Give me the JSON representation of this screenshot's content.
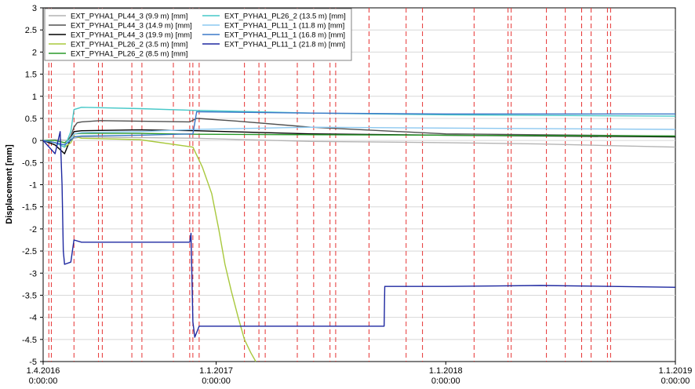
{
  "chart_data": {
    "type": "line",
    "ylabel": "Displacement [mm]",
    "xlabel": "",
    "ylim": [
      -5,
      3
    ],
    "xlim": [
      "2016-04-01",
      "2019-01-01"
    ],
    "yticks": [
      "3",
      "2.5",
      "2",
      "1.5",
      "1",
      "0.5",
      "0",
      "-0.5",
      "-1",
      "-1.5",
      "-2",
      "-2.5",
      "-3",
      "-3.5",
      "-4",
      "-4.5",
      "-5"
    ],
    "xticks": [
      {
        "date": "2016-04-01",
        "line1": "1.4.2016",
        "line2": "0:00:00"
      },
      {
        "date": "2017-01-01",
        "line1": "1.1.2017",
        "line2": "0:00:00"
      },
      {
        "date": "2018-01-01",
        "line1": "1.1.2018",
        "line2": "0:00:00"
      },
      {
        "date": "2019-01-01",
        "line1": "1.1.2019",
        "line2": "0:00:00"
      }
    ],
    "grid": "horizontal",
    "legend_position": "top-left",
    "event_lines": [
      "2016-04-10",
      "2016-04-14",
      "2016-05-20",
      "2016-06-28",
      "2016-07-04",
      "2016-08-20",
      "2016-09-05",
      "2016-10-25",
      "2016-11-20",
      "2016-11-25",
      "2016-12-05",
      "2017-02-15",
      "2017-03-10",
      "2017-03-20",
      "2017-05-10",
      "2017-06-05",
      "2017-07-01",
      "2017-07-10",
      "2017-09-01",
      "2017-10-30",
      "2017-11-25",
      "2018-02-15",
      "2018-04-10",
      "2018-04-15",
      "2018-06-10",
      "2018-07-10",
      "2018-08-05",
      "2018-08-20",
      "2018-09-15",
      "2018-09-20"
    ],
    "event_line_color": "#e63232",
    "series": [
      {
        "name": "EXT_PYHA1_PL44_3 (9.9 m) [mm]",
        "color": "#b4b4b4",
        "x": [
          "2016-04-01",
          "2016-04-20",
          "2016-05-10",
          "2016-05-20",
          "2016-06-01",
          "2016-08-01",
          "2016-12-01",
          "2017-06-01",
          "2018-01-01",
          "2018-06-01",
          "2019-01-01"
        ],
        "y": [
          0,
          0.02,
          0.0,
          0.05,
          0.08,
          0.07,
          0.05,
          -0.02,
          -0.05,
          -0.08,
          -0.15
        ]
      },
      {
        "name": "EXT_PYHA1_PL44_3 (14.9 m) [mm]",
        "color": "#505050",
        "x": [
          "2016-04-01",
          "2016-04-20",
          "2016-05-05",
          "2016-05-15",
          "2016-05-20",
          "2016-05-25",
          "2016-06-01",
          "2016-07-01",
          "2016-11-20",
          "2016-12-01",
          "2017-02-01",
          "2017-06-01",
          "2018-01-01",
          "2019-01-01"
        ],
        "y": [
          0,
          -0.05,
          -0.1,
          0.1,
          0.3,
          0.4,
          0.42,
          0.45,
          0.42,
          0.5,
          0.44,
          0.3,
          0.15,
          0.1
        ]
      },
      {
        "name": "EXT_PYHA1_PL44_3 (19.9 m) [mm]",
        "color": "#000000",
        "x": [
          "2016-04-01",
          "2016-04-20",
          "2016-05-05",
          "2016-05-15",
          "2016-05-20",
          "2016-06-01",
          "2016-09-01",
          "2016-12-01",
          "2017-06-01",
          "2018-01-01",
          "2019-01-01"
        ],
        "y": [
          0,
          -0.1,
          -0.3,
          0.05,
          0.2,
          0.22,
          0.24,
          0.22,
          0.15,
          0.12,
          0.08
        ]
      },
      {
        "name": "EXT_PYHA1_PL26_2 (3.5 m) [mm]",
        "color": "#a8c83c",
        "x": [
          "2016-04-01",
          "2016-04-20",
          "2016-05-05",
          "2016-05-15",
          "2016-05-20",
          "2016-06-01",
          "2016-09-01",
          "2016-11-25",
          "2016-12-10",
          "2016-12-25",
          "2017-01-05",
          "2017-01-15",
          "2017-01-25",
          "2017-02-05",
          "2017-02-15",
          "2017-02-25",
          "2017-03-05"
        ],
        "y": [
          0,
          -0.05,
          -0.15,
          -0.05,
          0.1,
          0.05,
          0.02,
          -0.15,
          -0.6,
          -1.2,
          -2.0,
          -2.8,
          -3.4,
          -4.0,
          -4.5,
          -4.8,
          -5.0
        ]
      },
      {
        "name": "EXT_PYHA1_PL26_2 (8.5 m) [mm]",
        "color": "#2a9a2a",
        "x": [
          "2016-04-01",
          "2016-04-20",
          "2016-05-05",
          "2016-05-15",
          "2016-05-20",
          "2016-06-01",
          "2016-09-01",
          "2016-12-01",
          "2017-06-01",
          "2018-01-01",
          "2019-01-01"
        ],
        "y": [
          0,
          0.0,
          -0.05,
          0.05,
          0.15,
          0.16,
          0.16,
          0.14,
          0.13,
          0.12,
          0.1
        ]
      },
      {
        "name": "EXT_PYHA1_PL26_2 (13.5 m) [mm]",
        "color": "#46c8c8",
        "x": [
          "2016-04-01",
          "2016-04-20",
          "2016-05-05",
          "2016-05-15",
          "2016-05-20",
          "2016-06-01",
          "2016-09-01",
          "2016-12-01",
          "2017-06-01",
          "2018-01-01",
          "2019-01-01"
        ],
        "y": [
          0,
          -0.05,
          -0.15,
          0.2,
          0.7,
          0.75,
          0.72,
          0.68,
          0.62,
          0.58,
          0.55
        ]
      },
      {
        "name": "EXT_PYHA1_PL11_1 (11.8 m) [mm]",
        "color": "#8cc8f0",
        "x": [
          "2016-04-01",
          "2016-04-20",
          "2016-05-05",
          "2016-05-15",
          "2016-05-20",
          "2016-06-01",
          "2016-09-01",
          "2016-12-01",
          "2017-06-01",
          "2018-01-01",
          "2019-01-01"
        ],
        "y": [
          0,
          -0.05,
          -0.1,
          0.05,
          0.15,
          0.18,
          0.2,
          0.25,
          0.3,
          0.28,
          0.25
        ]
      },
      {
        "name": "EXT_PYHA1_PL11_1 (16.8 m) [mm]",
        "color": "#3c78c8",
        "x": [
          "2016-04-01",
          "2016-04-20",
          "2016-05-05",
          "2016-05-15",
          "2016-05-20",
          "2016-06-01",
          "2016-09-01",
          "2016-11-25",
          "2016-12-01",
          "2017-06-01",
          "2018-01-01",
          "2019-01-01"
        ],
        "y": [
          0,
          -0.05,
          -0.1,
          0.0,
          0.08,
          0.1,
          0.12,
          0.15,
          0.65,
          0.62,
          0.6,
          0.6
        ]
      },
      {
        "name": "EXT_PYHA1_PL11_1 (21.8 m) [mm]",
        "color": "#1e28a0",
        "x": [
          "2016-04-01",
          "2016-04-20",
          "2016-04-28",
          "2016-05-01",
          "2016-05-03",
          "2016-05-05",
          "2016-05-15",
          "2016-05-20",
          "2016-06-01",
          "2016-09-01",
          "2016-11-20",
          "2016-11-22",
          "2016-11-25",
          "2016-11-28",
          "2016-12-05",
          "2017-06-01",
          "2017-09-25",
          "2017-09-26",
          "2018-01-01",
          "2018-06-01",
          "2019-01-01"
        ],
        "y": [
          0,
          -0.3,
          0.2,
          -1.0,
          -2.5,
          -2.8,
          -2.75,
          -2.25,
          -2.3,
          -2.3,
          -2.3,
          -2.1,
          -4.1,
          -4.45,
          -4.2,
          -4.2,
          -4.2,
          -3.3,
          -3.3,
          -3.28,
          -3.32
        ]
      }
    ]
  }
}
